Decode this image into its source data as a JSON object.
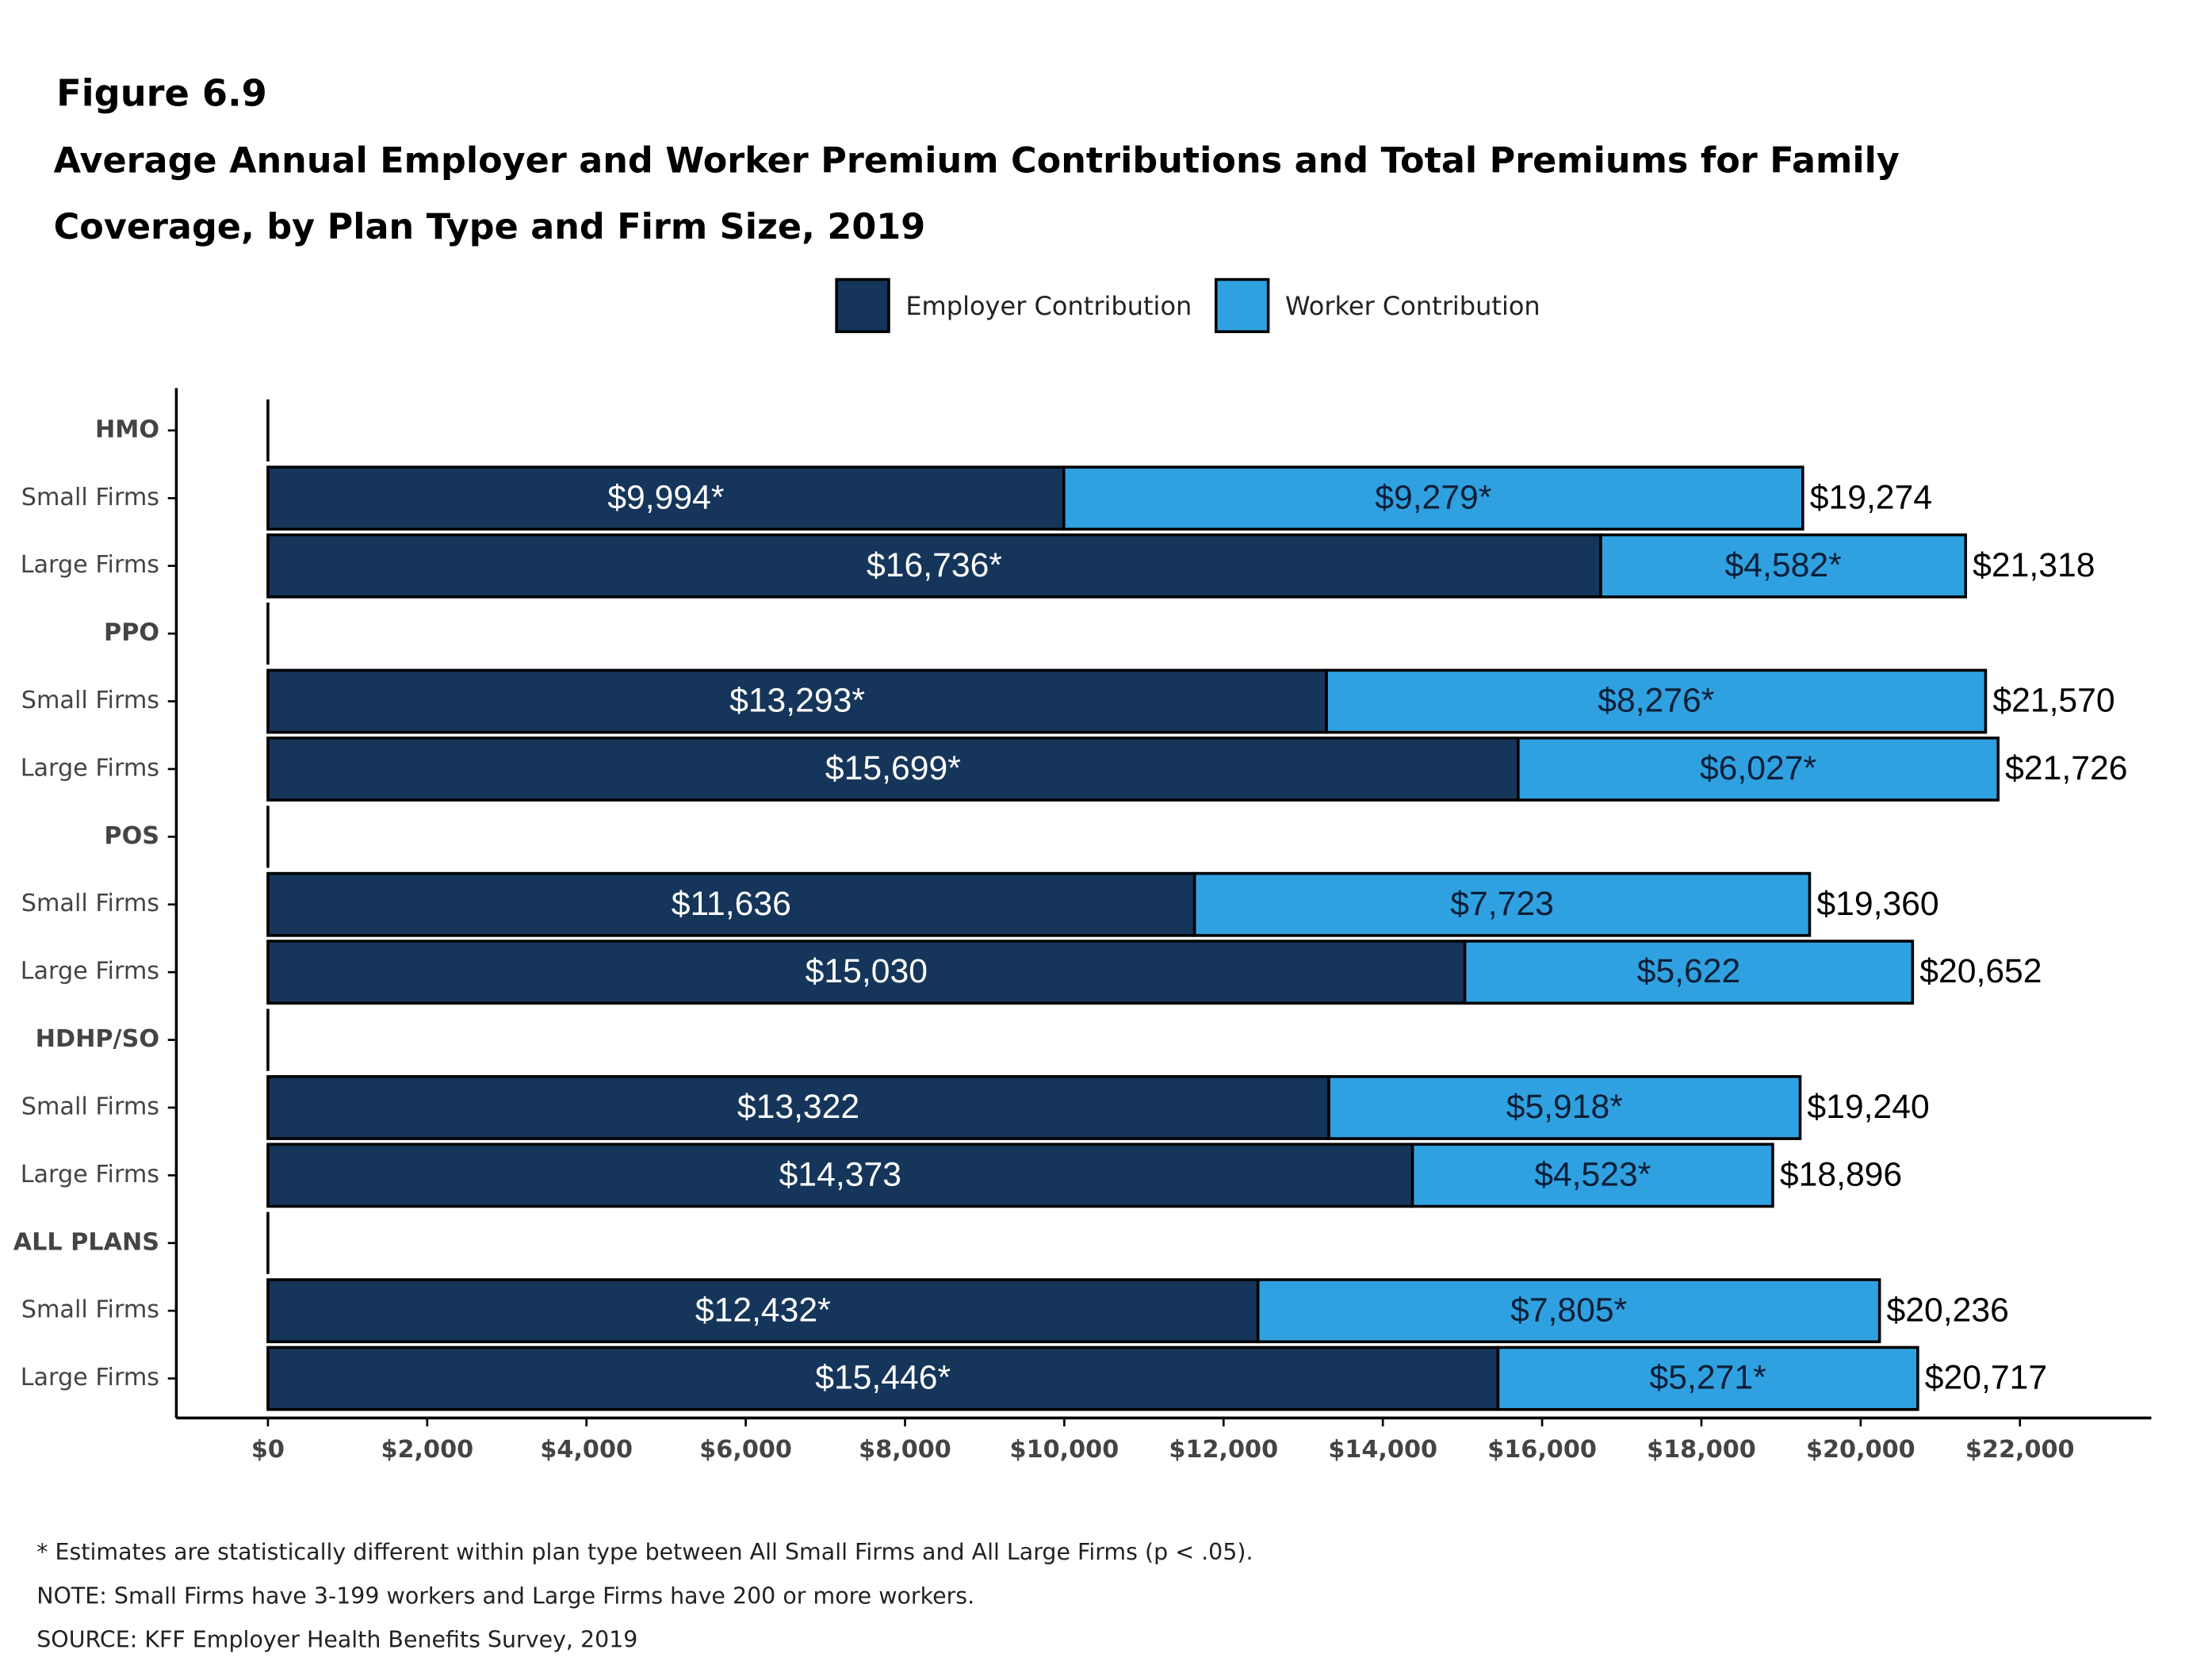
{
  "chart_data": {
    "type": "stacked-bar-horizontal",
    "title": "Figure 6.9",
    "subtitle": "Average Annual Employer and Worker Premium Contributions and Total Premiums for Family Coverage, by Plan Type and Firm Size, 2019",
    "categories": [
      "HMO",
      "Small Firms",
      "Large Firms",
      "PPO",
      "Small Firms",
      "Large Firms",
      "POS",
      "Small Firms",
      "Large Firms",
      "HDHP/SO",
      "Small Firms",
      "Large Firms",
      "ALL PLANS",
      "Small Firms",
      "Large Firms"
    ],
    "series": [
      {
        "name": "Employer Contribution",
        "color": "#15355a",
        "values": [
          null,
          9994,
          16736,
          null,
          13293,
          15699,
          null,
          11636,
          15030,
          null,
          13322,
          14373,
          null,
          12432,
          15446
        ],
        "value_labels": [
          null,
          "$9,994*",
          "$16,736*",
          null,
          "$13,293*",
          "$15,699*",
          null,
          "$11,636",
          "$15,030",
          null,
          "$13,322",
          "$14,373",
          null,
          "$12,432*",
          "$15,446*"
        ]
      },
      {
        "name": "Worker Contribution",
        "color": "#30a1e0",
        "values": [
          null,
          9279,
          4582,
          null,
          8276,
          6027,
          null,
          7723,
          5622,
          null,
          5918,
          4523,
          null,
          7805,
          5271
        ],
        "value_labels": [
          null,
          "$9,279*",
          "$4,582*",
          null,
          "$8,276*",
          "$6,027*",
          null,
          "$7,723",
          "$5,622",
          null,
          "$5,918*",
          "$4,523*",
          null,
          "$7,805*",
          "$5,271*"
        ]
      }
    ],
    "totals": {
      "values": [
        null,
        19274,
        21318,
        null,
        21570,
        21726,
        null,
        19360,
        20652,
        null,
        19240,
        18896,
        null,
        20236,
        20717
      ],
      "value_labels": [
        null,
        "$19,274",
        "$21,318",
        null,
        "$21,570",
        "$21,726",
        null,
        "$19,360",
        "$20,652",
        null,
        "$19,240",
        "$18,896",
        null,
        "$20,236",
        "$20,717"
      ]
    },
    "xlim": [
      -1150,
      23650
    ],
    "xticks": [
      {
        "value": 0,
        "label": "$0"
      },
      {
        "value": 2000,
        "label": "$2,000"
      },
      {
        "value": 4000,
        "label": "$4,000"
      },
      {
        "value": 6000,
        "label": "$6,000"
      },
      {
        "value": 8000,
        "label": "$8,000"
      },
      {
        "value": 10000,
        "label": "$10,000"
      },
      {
        "value": 12000,
        "label": "$12,000"
      },
      {
        "value": 14000,
        "label": "$14,000"
      },
      {
        "value": 16000,
        "label": "$16,000"
      },
      {
        "value": 18000,
        "label": "$18,000"
      },
      {
        "value": 20000,
        "label": "$20,000"
      },
      {
        "value": 22000,
        "label": "$22,000"
      }
    ],
    "notes": [
      "* Estimates are statistically different within plan type between All Small Firms and All Large Firms (p < .05).",
      "NOTE: Small Firms have 3-199 workers and Large Firms have 200 or more workers.",
      "SOURCE: KFF Employer Health Benefits Survey, 2019"
    ]
  }
}
